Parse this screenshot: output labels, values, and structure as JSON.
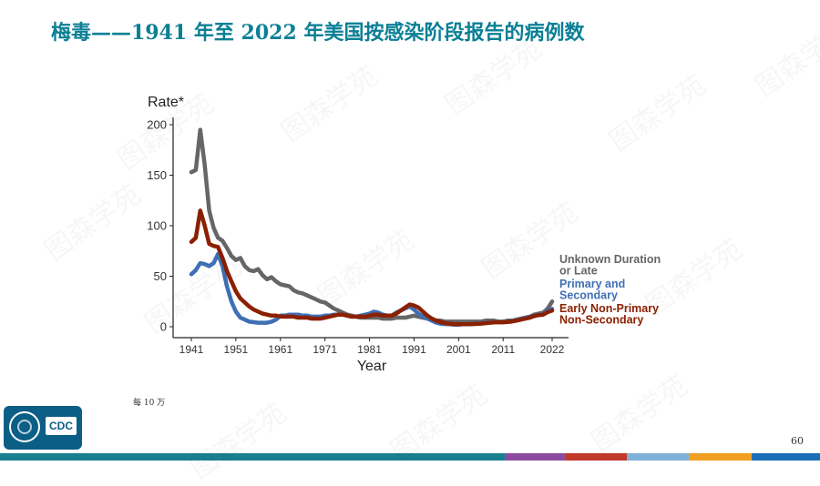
{
  "slide": {
    "title": "梅毒——1941 年至 2022 年美国按感染阶段报告的病例数",
    "footnote": "每 10 万",
    "page_number": "60",
    "logo_text": "CDC",
    "watermark_text": "图森学苑"
  },
  "colors": {
    "title": "#0b7f95",
    "bottom_bar": [
      "#1a7f8e",
      "#1a7f8e",
      "#1a7f8e",
      "#1a7f8e",
      "#1a7f8e",
      "#1a7f8e",
      "#1a7f8e",
      "#1a7f8e",
      "#8b4ba0",
      "#c0392b",
      "#7fb0d8",
      "#f0a020",
      "#1b6eb5"
    ]
  },
  "chart_data": {
    "type": "line",
    "title": "",
    "xlabel": "Year",
    "ylabel": "Rate*",
    "xlim": [
      1941,
      2022
    ],
    "ylim": [
      0,
      200
    ],
    "xticks": [
      1941,
      1951,
      1961,
      1971,
      1981,
      1991,
      2001,
      2011,
      2022
    ],
    "yticks": [
      0,
      50,
      100,
      150,
      200
    ],
    "legend_position": "right, at line ends",
    "series": [
      {
        "name": "Unknown Duration or Late",
        "color": "#666666",
        "points": [
          [
            1941,
            153
          ],
          [
            1942,
            155
          ],
          [
            1943,
            195
          ],
          [
            1944,
            160
          ],
          [
            1945,
            115
          ],
          [
            1946,
            98
          ],
          [
            1947,
            88
          ],
          [
            1948,
            85
          ],
          [
            1949,
            78
          ],
          [
            1950,
            70
          ],
          [
            1951,
            66
          ],
          [
            1952,
            68
          ],
          [
            1953,
            60
          ],
          [
            1954,
            56
          ],
          [
            1955,
            55
          ],
          [
            1956,
            57
          ],
          [
            1957,
            51
          ],
          [
            1958,
            47
          ],
          [
            1959,
            49
          ],
          [
            1960,
            45
          ],
          [
            1961,
            42
          ],
          [
            1962,
            41
          ],
          [
            1963,
            40
          ],
          [
            1964,
            36
          ],
          [
            1965,
            34
          ],
          [
            1966,
            33
          ],
          [
            1967,
            31
          ],
          [
            1968,
            29
          ],
          [
            1969,
            27
          ],
          [
            1970,
            25
          ],
          [
            1971,
            24
          ],
          [
            1972,
            21
          ],
          [
            1973,
            18
          ],
          [
            1974,
            16
          ],
          [
            1975,
            14
          ],
          [
            1976,
            12
          ],
          [
            1977,
            11
          ],
          [
            1978,
            10
          ],
          [
            1979,
            9
          ],
          [
            1980,
            9
          ],
          [
            1981,
            9
          ],
          [
            1982,
            9
          ],
          [
            1983,
            9
          ],
          [
            1984,
            8
          ],
          [
            1985,
            8
          ],
          [
            1986,
            8
          ],
          [
            1987,
            9
          ],
          [
            1988,
            9
          ],
          [
            1989,
            9
          ],
          [
            1990,
            10
          ],
          [
            1991,
            11
          ],
          [
            1992,
            10
          ],
          [
            1993,
            9
          ],
          [
            1994,
            8
          ],
          [
            1995,
            7
          ],
          [
            1996,
            6
          ],
          [
            1997,
            6
          ],
          [
            1998,
            5
          ],
          [
            1999,
            5
          ],
          [
            2000,
            5
          ],
          [
            2001,
            5
          ],
          [
            2002,
            5
          ],
          [
            2003,
            5
          ],
          [
            2004,
            5
          ],
          [
            2005,
            5
          ],
          [
            2006,
            5
          ],
          [
            2007,
            6
          ],
          [
            2008,
            6
          ],
          [
            2009,
            6
          ],
          [
            2010,
            5
          ],
          [
            2011,
            5
          ],
          [
            2012,
            6
          ],
          [
            2013,
            6
          ],
          [
            2014,
            7
          ],
          [
            2015,
            8
          ],
          [
            2016,
            9
          ],
          [
            2017,
            10
          ],
          [
            2018,
            12
          ],
          [
            2019,
            13
          ],
          [
            2020,
            14
          ],
          [
            2021,
            18
          ],
          [
            2022,
            25
          ]
        ]
      },
      {
        "name": "Primary and Secondary",
        "color": "#3f6fb5",
        "points": [
          [
            1941,
            52
          ],
          [
            1942,
            56
          ],
          [
            1943,
            63
          ],
          [
            1944,
            62
          ],
          [
            1945,
            60
          ],
          [
            1946,
            63
          ],
          [
            1947,
            72
          ],
          [
            1948,
            60
          ],
          [
            1949,
            40
          ],
          [
            1950,
            25
          ],
          [
            1951,
            15
          ],
          [
            1952,
            9
          ],
          [
            1953,
            7
          ],
          [
            1954,
            5
          ],
          [
            1955,
            4.5
          ],
          [
            1956,
            4
          ],
          [
            1957,
            4
          ],
          [
            1958,
            4
          ],
          [
            1959,
            5
          ],
          [
            1960,
            7
          ],
          [
            1961,
            11
          ],
          [
            1962,
            11
          ],
          [
            1963,
            12
          ],
          [
            1964,
            12
          ],
          [
            1965,
            12
          ],
          [
            1966,
            11
          ],
          [
            1967,
            11
          ],
          [
            1968,
            10
          ],
          [
            1969,
            10
          ],
          [
            1970,
            10
          ],
          [
            1971,
            11
          ],
          [
            1972,
            11
          ],
          [
            1973,
            12
          ],
          [
            1974,
            12
          ],
          [
            1975,
            12
          ],
          [
            1976,
            11
          ],
          [
            1977,
            10
          ],
          [
            1978,
            10
          ],
          [
            1979,
            11
          ],
          [
            1980,
            12
          ],
          [
            1981,
            13
          ],
          [
            1982,
            15
          ],
          [
            1983,
            14
          ],
          [
            1984,
            12
          ],
          [
            1985,
            11
          ],
          [
            1986,
            11
          ],
          [
            1987,
            14
          ],
          [
            1988,
            16
          ],
          [
            1989,
            18
          ],
          [
            1990,
            20
          ],
          [
            1991,
            17
          ],
          [
            1992,
            13
          ],
          [
            1993,
            10
          ],
          [
            1994,
            8
          ],
          [
            1995,
            6
          ],
          [
            1996,
            4
          ],
          [
            1997,
            3
          ],
          [
            1998,
            2.6
          ],
          [
            1999,
            2.5
          ],
          [
            2000,
            2.1
          ],
          [
            2001,
            2.1
          ],
          [
            2002,
            2.4
          ],
          [
            2003,
            2.5
          ],
          [
            2004,
            2.7
          ],
          [
            2005,
            2.9
          ],
          [
            2006,
            3.3
          ],
          [
            2007,
            3.8
          ],
          [
            2008,
            4.5
          ],
          [
            2009,
            4.6
          ],
          [
            2010,
            4.5
          ],
          [
            2011,
            4.5
          ],
          [
            2012,
            5
          ],
          [
            2013,
            5.5
          ],
          [
            2014,
            6.3
          ],
          [
            2015,
            7.5
          ],
          [
            2016,
            8.7
          ],
          [
            2017,
            9.5
          ],
          [
            2018,
            10.8
          ],
          [
            2019,
            11.9
          ],
          [
            2020,
            12.7
          ],
          [
            2021,
            16.2
          ],
          [
            2022,
            17.7
          ]
        ]
      },
      {
        "name": "Early Non-Primary Non-Secondary",
        "color": "#8b2000",
        "points": [
          [
            1941,
            84
          ],
          [
            1942,
            88
          ],
          [
            1943,
            115
          ],
          [
            1944,
            100
          ],
          [
            1945,
            82
          ],
          [
            1946,
            80
          ],
          [
            1947,
            79
          ],
          [
            1948,
            68
          ],
          [
            1949,
            55
          ],
          [
            1950,
            45
          ],
          [
            1951,
            35
          ],
          [
            1952,
            28
          ],
          [
            1953,
            24
          ],
          [
            1954,
            20
          ],
          [
            1955,
            17
          ],
          [
            1956,
            15
          ],
          [
            1957,
            13
          ],
          [
            1958,
            12
          ],
          [
            1959,
            11
          ],
          [
            1960,
            11
          ],
          [
            1961,
            10
          ],
          [
            1962,
            10
          ],
          [
            1963,
            10
          ],
          [
            1964,
            10
          ],
          [
            1965,
            9
          ],
          [
            1966,
            9
          ],
          [
            1967,
            9
          ],
          [
            1968,
            8
          ],
          [
            1969,
            8
          ],
          [
            1970,
            8
          ],
          [
            1971,
            9
          ],
          [
            1972,
            10
          ],
          [
            1973,
            11
          ],
          [
            1974,
            12
          ],
          [
            1975,
            12
          ],
          [
            1976,
            11
          ],
          [
            1977,
            10
          ],
          [
            1978,
            10
          ],
          [
            1979,
            10
          ],
          [
            1980,
            10
          ],
          [
            1981,
            11
          ],
          [
            1982,
            12
          ],
          [
            1983,
            12
          ],
          [
            1984,
            11
          ],
          [
            1985,
            11
          ],
          [
            1986,
            11
          ],
          [
            1987,
            13
          ],
          [
            1988,
            16
          ],
          [
            1989,
            19
          ],
          [
            1990,
            22
          ],
          [
            1991,
            21
          ],
          [
            1992,
            19
          ],
          [
            1993,
            15
          ],
          [
            1994,
            11
          ],
          [
            1995,
            8
          ],
          [
            1996,
            6
          ],
          [
            1997,
            4.5
          ],
          [
            1998,
            3.5
          ],
          [
            1999,
            3
          ],
          [
            2000,
            2.6
          ],
          [
            2001,
            2.5
          ],
          [
            2002,
            2.5
          ],
          [
            2003,
            2.5
          ],
          [
            2004,
            2.6
          ],
          [
            2005,
            2.8
          ],
          [
            2006,
            3
          ],
          [
            2007,
            3.5
          ],
          [
            2008,
            4
          ],
          [
            2009,
            4.3
          ],
          [
            2010,
            4.4
          ],
          [
            2011,
            4.4
          ],
          [
            2012,
            4.8
          ],
          [
            2013,
            5.2
          ],
          [
            2014,
            6
          ],
          [
            2015,
            7
          ],
          [
            2016,
            8
          ],
          [
            2017,
            9
          ],
          [
            2018,
            10.5
          ],
          [
            2019,
            11.5
          ],
          [
            2020,
            12
          ],
          [
            2021,
            14.5
          ],
          [
            2022,
            16
          ]
        ]
      }
    ],
    "legend": [
      {
        "lines": [
          "Unknown Duration",
          "or Late"
        ],
        "color": "#666666"
      },
      {
        "lines": [
          "Primary and",
          "Secondary"
        ],
        "color": "#3f6fb5"
      },
      {
        "lines": [
          "Early Non-Primary",
          "Non-Secondary"
        ],
        "color": "#8b2000"
      }
    ]
  }
}
